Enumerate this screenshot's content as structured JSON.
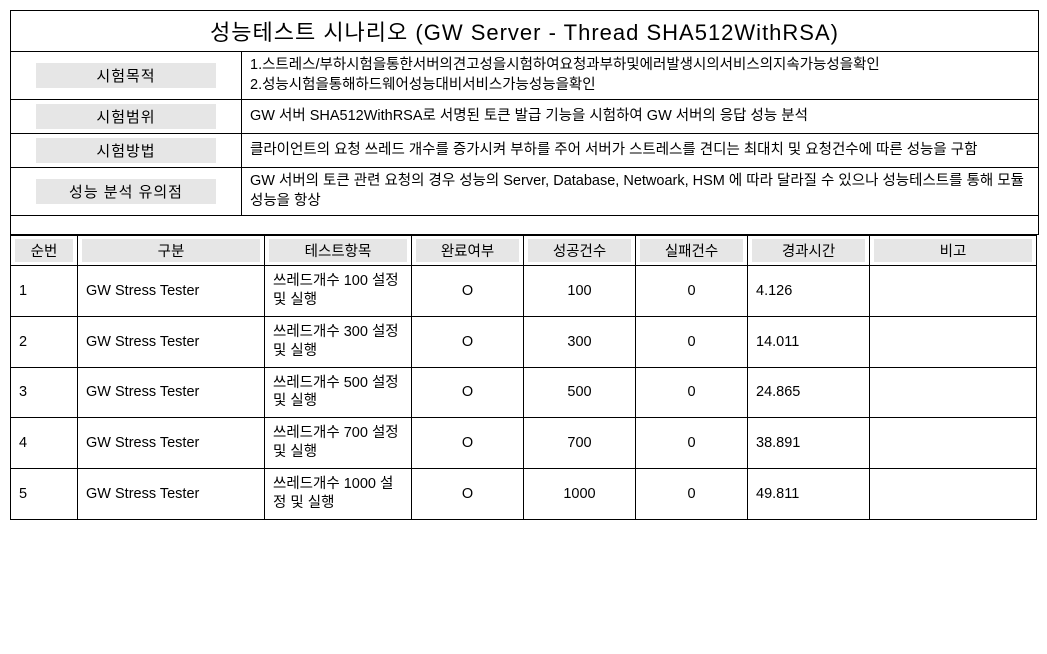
{
  "title": "성능테스트  시나리오 (GW Server - Thread SHA512WithRSA)",
  "meta": [
    {
      "label": "시험목적",
      "value": "1.스트레스/부하시험을통한서버의견고성을시험하여요청과부하및에러발생시의서비스의지속가능성을확인\n2.성능시험을통해하드웨어성능대비서비스가능성능을확인"
    },
    {
      "label": "시험범위",
      "value": "GW 서버 SHA512WithRSA로 서명된 토큰 발급 기능을 시험하여 GW 서버의 응답 성능 분석"
    },
    {
      "label": "시험방법",
      "value": "클라이언트의 요청 쓰레드 개수를 증가시켜 부하를 주어 서버가 스트레스를 견디는 최대치 및 요청건수에 따른 성능을  구함"
    },
    {
      "label": "성능 분석 유의점",
      "value": "GW 서버의 토큰 관련 요청의 경우 성능의 Server, Database,  Netwoark, HSM 에 따라 달라질 수 있으나 성능테스트를 통해 모듈 성능을 항상"
    }
  ],
  "columns": [
    "순번",
    "구분",
    "테스트항목",
    "완료여부",
    "성공건수",
    "실패건수",
    "경과시간",
    "비고"
  ],
  "rows": [
    {
      "seq": "1",
      "cat": "GW Stress Tester",
      "item": "쓰레드개수 100  설정 및 실행",
      "done": "O",
      "succ": "100",
      "fail": "0",
      "time": "4.126",
      "note": ""
    },
    {
      "seq": "2",
      "cat": "GW Stress Tester",
      "item": "쓰레드개수 300  설정 및 실행",
      "done": "O",
      "succ": "300",
      "fail": "0",
      "time": "14.011",
      "note": ""
    },
    {
      "seq": "3",
      "cat": "GW Stress Tester",
      "item": "쓰레드개수 500  설정 및 실행",
      "done": "O",
      "succ": "500",
      "fail": "0",
      "time": "24.865",
      "note": ""
    },
    {
      "seq": "4",
      "cat": "GW Stress Tester",
      "item": "쓰레드개수 700  설정 및 실행",
      "done": "O",
      "succ": "700",
      "fail": "0",
      "time": "38.891",
      "note": ""
    },
    {
      "seq": "5",
      "cat": "GW Stress Tester",
      "item": "쓰레드개수 1000  설정 및 실행",
      "done": "O",
      "succ": "1000",
      "fail": "0",
      "time": "49.811",
      "note": ""
    }
  ]
}
